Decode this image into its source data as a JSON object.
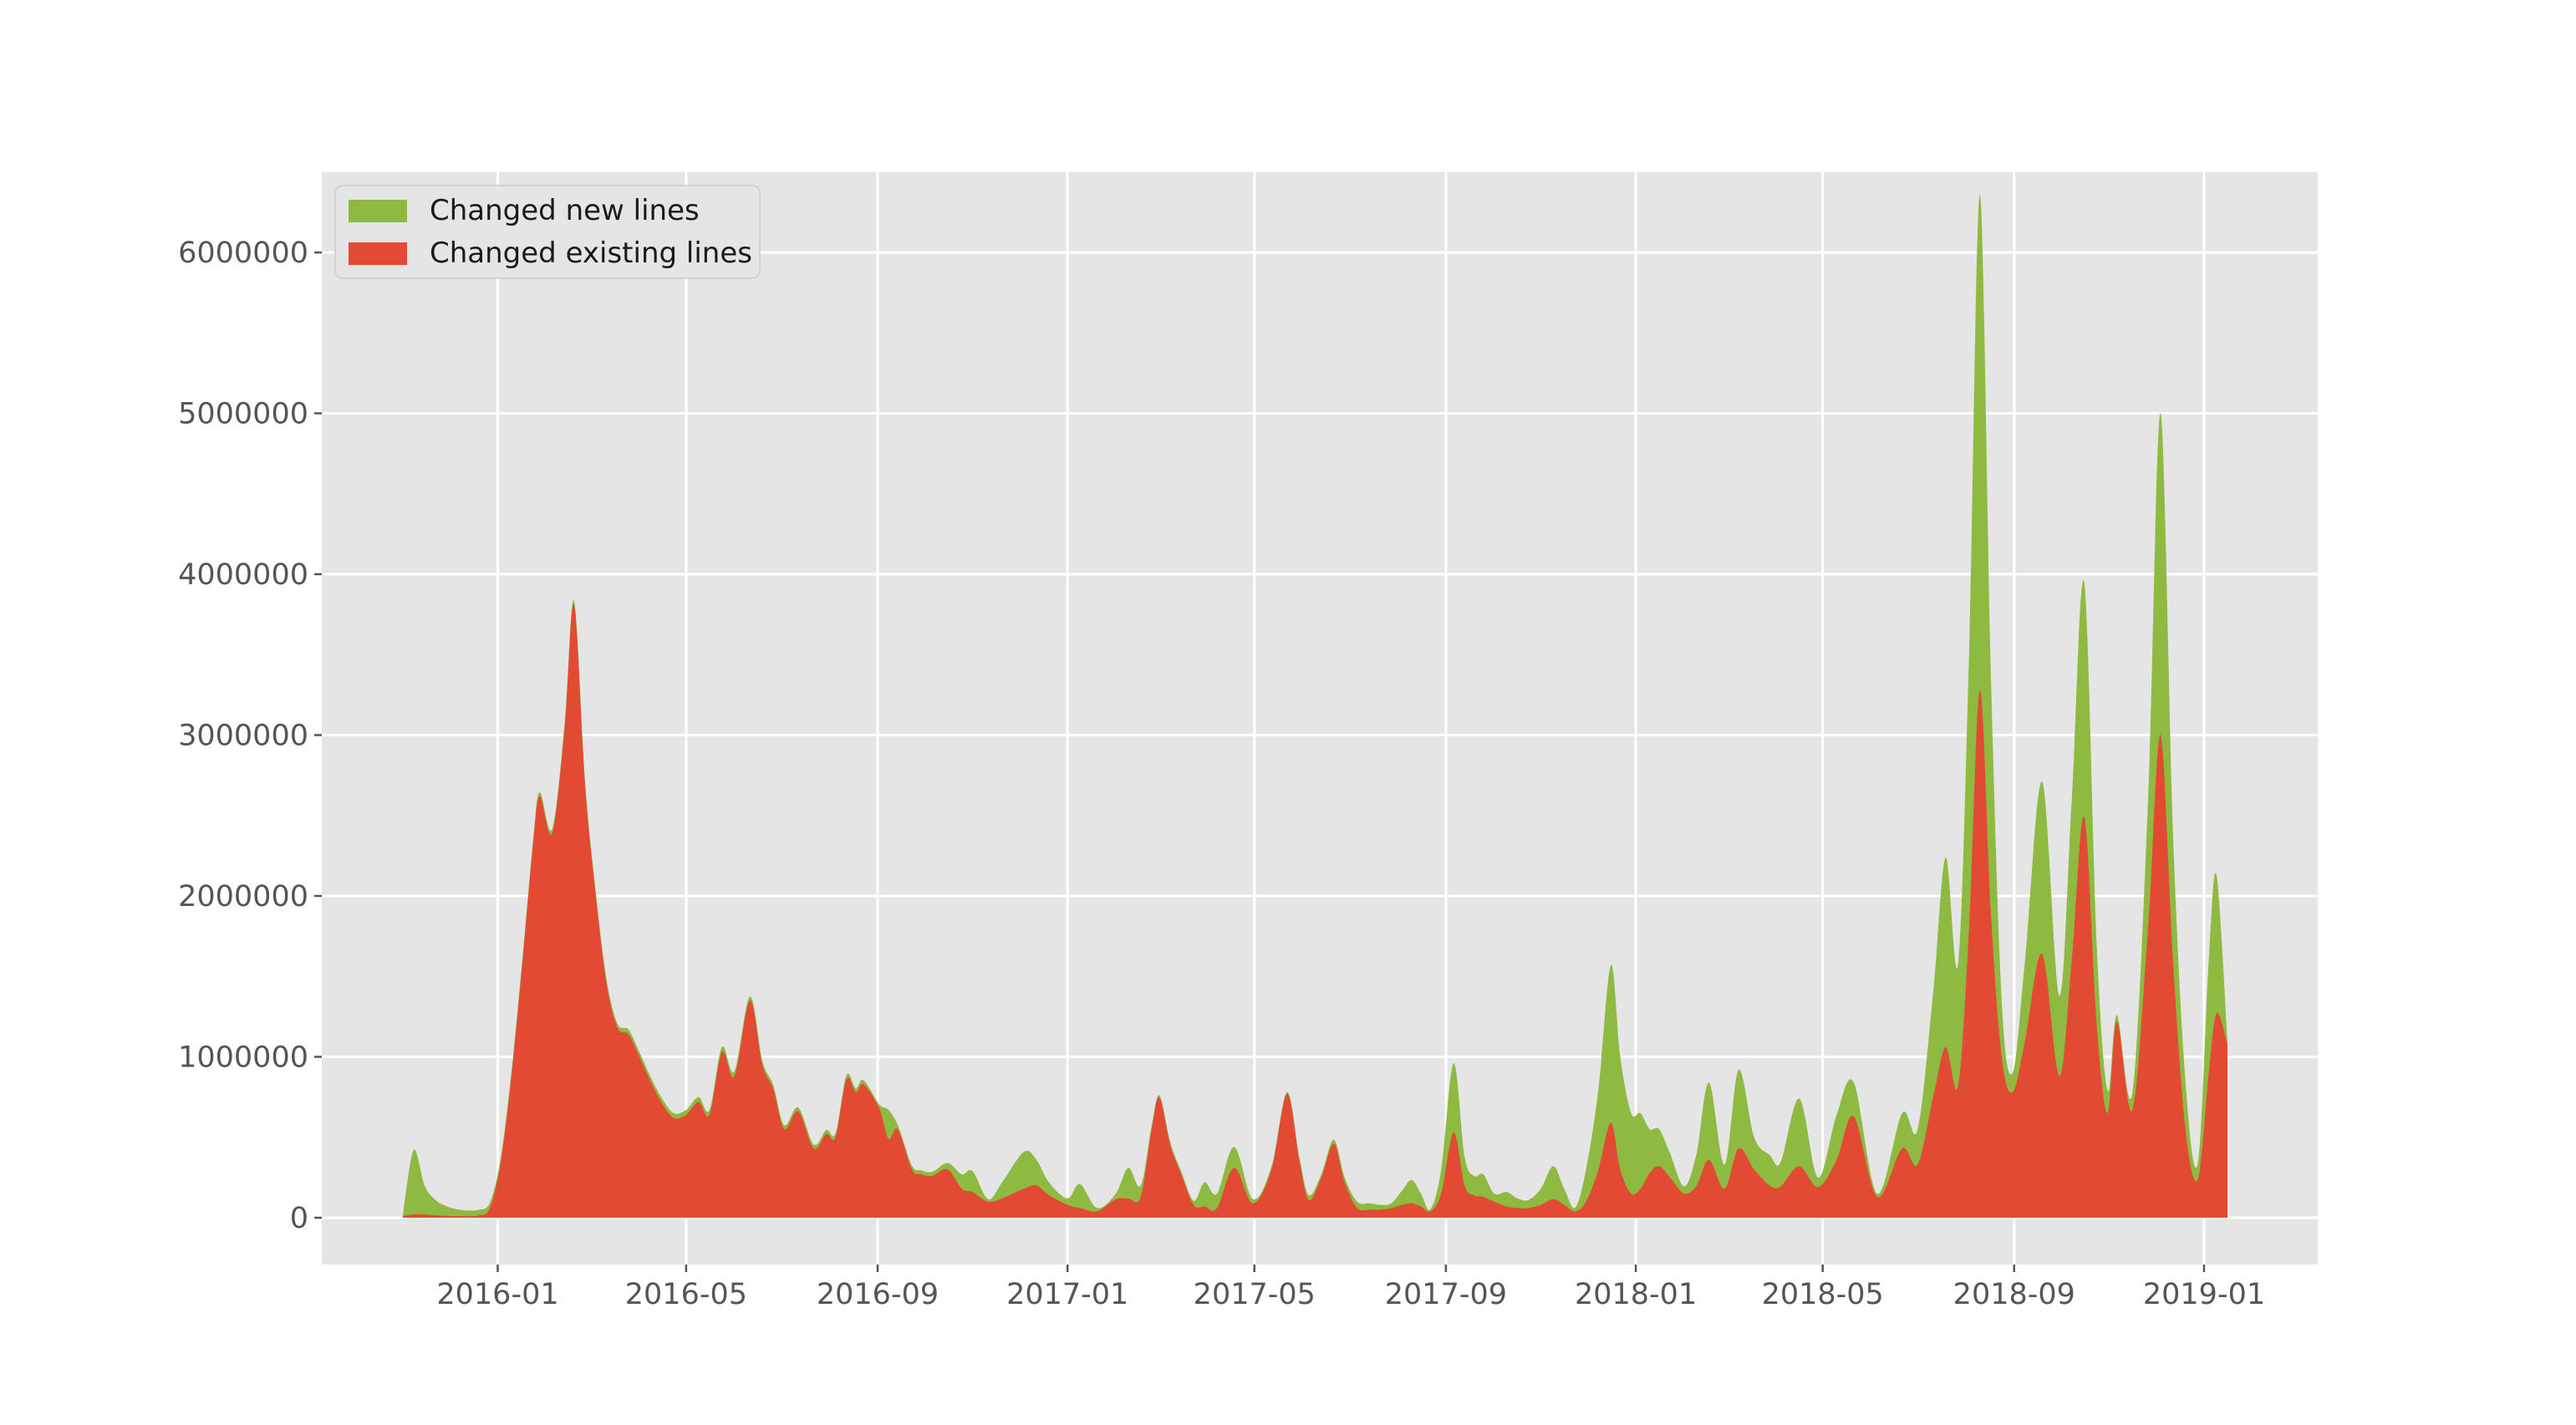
{
  "figure": {
    "background": "#ffffff",
    "title": ""
  },
  "chart_data": {
    "type": "area",
    "stacked": true,
    "title": "",
    "xlabel": "",
    "ylabel": "",
    "grid": true,
    "legend_position": "upper left",
    "plot_bg": "#E5E5E5",
    "grid_color": "#FFFFFF",
    "tick_color": "#555555",
    "xlim": [
      "2015-09-10",
      "2019-03-15"
    ],
    "ylim": [
      -291000,
      6499000
    ],
    "yticks": [
      {
        "v": 0,
        "label": "0"
      },
      {
        "v": 1000000,
        "label": "1000000"
      },
      {
        "v": 2000000,
        "label": "2000000"
      },
      {
        "v": 3000000,
        "label": "3000000"
      },
      {
        "v": 4000000,
        "label": "4000000"
      },
      {
        "v": 5000000,
        "label": "5000000"
      },
      {
        "v": 6000000,
        "label": "6000000"
      }
    ],
    "xticks": [
      {
        "v": "2016-01-01",
        "label": "2016-01"
      },
      {
        "v": "2016-05-01",
        "label": "2016-05"
      },
      {
        "v": "2016-09-01",
        "label": "2016-09"
      },
      {
        "v": "2017-01-01",
        "label": "2017-01"
      },
      {
        "v": "2017-05-01",
        "label": "2017-05"
      },
      {
        "v": "2017-09-01",
        "label": "2017-09"
      },
      {
        "v": "2018-01-01",
        "label": "2018-01"
      },
      {
        "v": "2018-05-01",
        "label": "2018-05"
      },
      {
        "v": "2018-09-01",
        "label": "2018-09"
      },
      {
        "v": "2019-01-01",
        "label": "2019-01"
      }
    ],
    "x": [
      "2015-11-01",
      "2015-11-08",
      "2015-11-15",
      "2015-11-22",
      "2015-11-29",
      "2015-12-06",
      "2015-12-13",
      "2015-12-20",
      "2015-12-27",
      "2016-01-03",
      "2016-01-10",
      "2016-01-17",
      "2016-01-24",
      "2016-01-28",
      "2016-02-05",
      "2016-02-13",
      "2016-02-19",
      "2016-02-26",
      "2016-03-04",
      "2016-03-11",
      "2016-03-18",
      "2016-03-25",
      "2016-04-01",
      "2016-04-08",
      "2016-04-15",
      "2016-04-23",
      "2016-05-01",
      "2016-05-09",
      "2016-05-16",
      "2016-05-24",
      "2016-06-01",
      "2016-06-11",
      "2016-06-19",
      "2016-06-26",
      "2016-07-03",
      "2016-07-12",
      "2016-07-22",
      "2016-07-30",
      "2016-08-05",
      "2016-08-12",
      "2016-08-18",
      "2016-08-23",
      "2016-09-02",
      "2016-09-08",
      "2016-09-14",
      "2016-09-23",
      "2016-09-29",
      "2016-10-06",
      "2016-10-16",
      "2016-10-25",
      "2016-11-01",
      "2016-11-11",
      "2016-11-20",
      "2016-12-04",
      "2016-12-12",
      "2016-12-20",
      "2017-01-01",
      "2017-01-09",
      "2017-01-20",
      "2017-02-01",
      "2017-02-09",
      "2017-02-17",
      "2017-02-24",
      "2017-03-01",
      "2017-03-08",
      "2017-03-15",
      "2017-03-23",
      "2017-03-30",
      "2017-04-07",
      "2017-04-18",
      "2017-04-30",
      "2017-05-12",
      "2017-05-22",
      "2017-05-30",
      "2017-06-05",
      "2017-06-13",
      "2017-06-21",
      "2017-06-28",
      "2017-07-06",
      "2017-07-14",
      "2017-07-21",
      "2017-07-28",
      "2017-08-04",
      "2017-08-10",
      "2017-08-16",
      "2017-08-22",
      "2017-08-29",
      "2017-09-06",
      "2017-09-13",
      "2017-09-19",
      "2017-09-25",
      "2017-10-02",
      "2017-10-10",
      "2017-10-17",
      "2017-10-24",
      "2017-11-01",
      "2017-11-09",
      "2017-11-16",
      "2017-11-23",
      "2017-11-30",
      "2017-12-08",
      "2017-12-16",
      "2017-12-22",
      "2017-12-29",
      "2018-01-04",
      "2018-01-10",
      "2018-01-16",
      "2018-01-23",
      "2018-02-01",
      "2018-02-09",
      "2018-02-17",
      "2018-02-27",
      "2018-03-08",
      "2018-03-18",
      "2018-03-28",
      "2018-04-04",
      "2018-04-16",
      "2018-04-28",
      "2018-05-10",
      "2018-05-21",
      "2018-06-05",
      "2018-06-21",
      "2018-07-01",
      "2018-07-11",
      "2018-07-19",
      "2018-07-27",
      "2018-08-03",
      "2018-08-10",
      "2018-08-17",
      "2018-08-24",
      "2018-08-31",
      "2018-09-08",
      "2018-09-19",
      "2018-09-30",
      "2018-10-08",
      "2018-10-16",
      "2018-10-24",
      "2018-10-31",
      "2018-11-06",
      "2018-11-16",
      "2018-11-26",
      "2018-12-04",
      "2018-12-12",
      "2018-12-20",
      "2018-12-28",
      "2019-01-04",
      "2019-01-09",
      "2019-01-16"
    ],
    "series": [
      {
        "name": "Changed new lines",
        "color": "#8EBA42",
        "values": [
          5000,
          400000,
          180000,
          95000,
          60000,
          42000,
          35000,
          35000,
          35000,
          25000,
          25000,
          25000,
          25000,
          25000,
          25000,
          25000,
          25000,
          25000,
          25000,
          25000,
          25000,
          30000,
          30000,
          30000,
          30000,
          30000,
          30000,
          30000,
          30000,
          30000,
          30000,
          25000,
          25000,
          25000,
          25000,
          25000,
          25000,
          25000,
          25000,
          25000,
          25000,
          25000,
          25000,
          180000,
          25000,
          25000,
          25000,
          25000,
          40000,
          90000,
          130000,
          15000,
          100000,
          230000,
          160000,
          80000,
          40000,
          150000,
          20000,
          35000,
          190000,
          70000,
          20000,
          10000,
          20000,
          20000,
          25000,
          150000,
          90000,
          130000,
          25000,
          20000,
          10000,
          20000,
          30000,
          20000,
          25000,
          30000,
          40000,
          40000,
          30000,
          30000,
          90000,
          145000,
          80000,
          12000,
          150000,
          430000,
          180000,
          120000,
          140000,
          50000,
          90000,
          60000,
          50000,
          100000,
          205000,
          100000,
          22000,
          200000,
          500000,
          980000,
          700000,
          500000,
          470000,
          270000,
          230000,
          150000,
          45000,
          200000,
          480000,
          150000,
          490000,
          200000,
          190000,
          150000,
          420000,
          60000,
          280000,
          210000,
          20000,
          220000,
          220000,
          650000,
          1180000,
          760000,
          1700000,
          3080000,
          1500000,
          350000,
          120000,
          500000,
          1070000,
          500000,
          1000000,
          1460000,
          500000,
          140000,
          40000,
          110000,
          800000,
          2000000,
          800000,
          300000,
          100000,
          700000,
          860000,
          20000
        ]
      },
      {
        "name": "Changed existing lines",
        "color": "#E24A33",
        "values": [
          10000,
          20000,
          20000,
          15000,
          12000,
          10000,
          10000,
          15000,
          60000,
          350000,
          900000,
          1600000,
          2350000,
          2620000,
          2390000,
          3050000,
          3810000,
          2700000,
          2000000,
          1450000,
          1180000,
          1140000,
          1000000,
          850000,
          720000,
          620000,
          640000,
          720000,
          640000,
          1030000,
          880000,
          1350000,
          950000,
          800000,
          550000,
          660000,
          430000,
          520000,
          500000,
          860000,
          780000,
          830000,
          680000,
          490000,
          550000,
          300000,
          270000,
          260000,
          300000,
          180000,
          160000,
          100000,
          120000,
          180000,
          200000,
          140000,
          80000,
          60000,
          40000,
          115000,
          120000,
          130000,
          550000,
          750000,
          450000,
          270000,
          80000,
          70000,
          60000,
          310000,
          90000,
          300000,
          770000,
          350000,
          110000,
          250000,
          460000,
          220000,
          60000,
          50000,
          50000,
          60000,
          80000,
          90000,
          70000,
          40000,
          150000,
          530000,
          200000,
          140000,
          130000,
          100000,
          70000,
          60000,
          60000,
          80000,
          115000,
          80000,
          40000,
          100000,
          300000,
          590000,
          300000,
          150000,
          180000,
          280000,
          320000,
          250000,
          150000,
          200000,
          360000,
          180000,
          430000,
          300000,
          200000,
          195000,
          320000,
          190000,
          360000,
          630000,
          130000,
          430000,
          330000,
          750000,
          1060000,
          820000,
          1800000,
          3280000,
          1900000,
          1000000,
          780000,
          1100000,
          1640000,
          880000,
          1600000,
          2490000,
          1200000,
          650000,
          1220000,
          670000,
          1800000,
          3000000,
          1600000,
          550000,
          240000,
          900000,
          1270000,
          1080000
        ]
      }
    ]
  }
}
